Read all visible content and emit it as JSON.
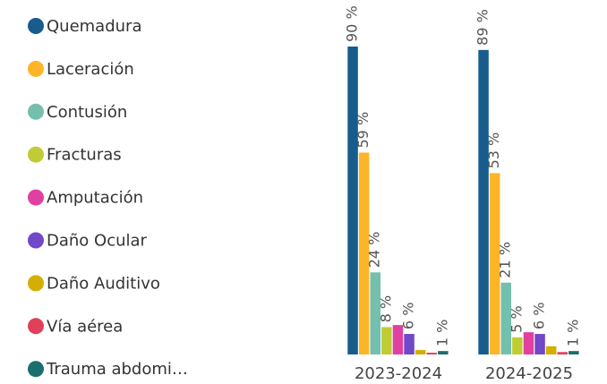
{
  "chart_data": {
    "type": "bar",
    "categories": [
      "2023-2024",
      "2024-2025"
    ],
    "series": [
      {
        "name": "Quemadura",
        "color": "#175c8c",
        "values": [
          90,
          89
        ],
        "value_labels": [
          "90 %",
          "89 %"
        ]
      },
      {
        "name": "Laceración",
        "color": "#fdb528",
        "values": [
          59,
          53
        ],
        "value_labels": [
          "59 %",
          "53 %"
        ]
      },
      {
        "name": "Contusión",
        "color": "#74bfae",
        "values": [
          24,
          21
        ],
        "value_labels": [
          "24 %",
          "21 %"
        ]
      },
      {
        "name": "Fracturas",
        "color": "#bfcc33",
        "values": [
          8,
          5
        ],
        "value_labels": [
          "8 %",
          "5 %"
        ]
      },
      {
        "name": "Amputación",
        "color": "#e040a0",
        "values": [
          8.6,
          6.5
        ],
        "value_labels": [
          null,
          null
        ]
      },
      {
        "name": "Daño Ocular",
        "color": "#7048c8",
        "values": [
          6,
          6
        ],
        "value_labels": [
          "6 %",
          "6 %"
        ]
      },
      {
        "name": "Daño Auditivo",
        "color": "#d4ae00",
        "values": [
          1.3,
          2.4
        ],
        "value_labels": [
          null,
          null
        ]
      },
      {
        "name": "Vía aérea",
        "color": "#e0405a",
        "values": [
          0.5,
          0.7
        ],
        "value_labels": [
          null,
          null
        ]
      },
      {
        "name": "Trauma abdomi…",
        "color": "#1a6e6e",
        "values": [
          1,
          1
        ],
        "value_labels": [
          "1 %",
          "1 %"
        ]
      }
    ]
  }
}
